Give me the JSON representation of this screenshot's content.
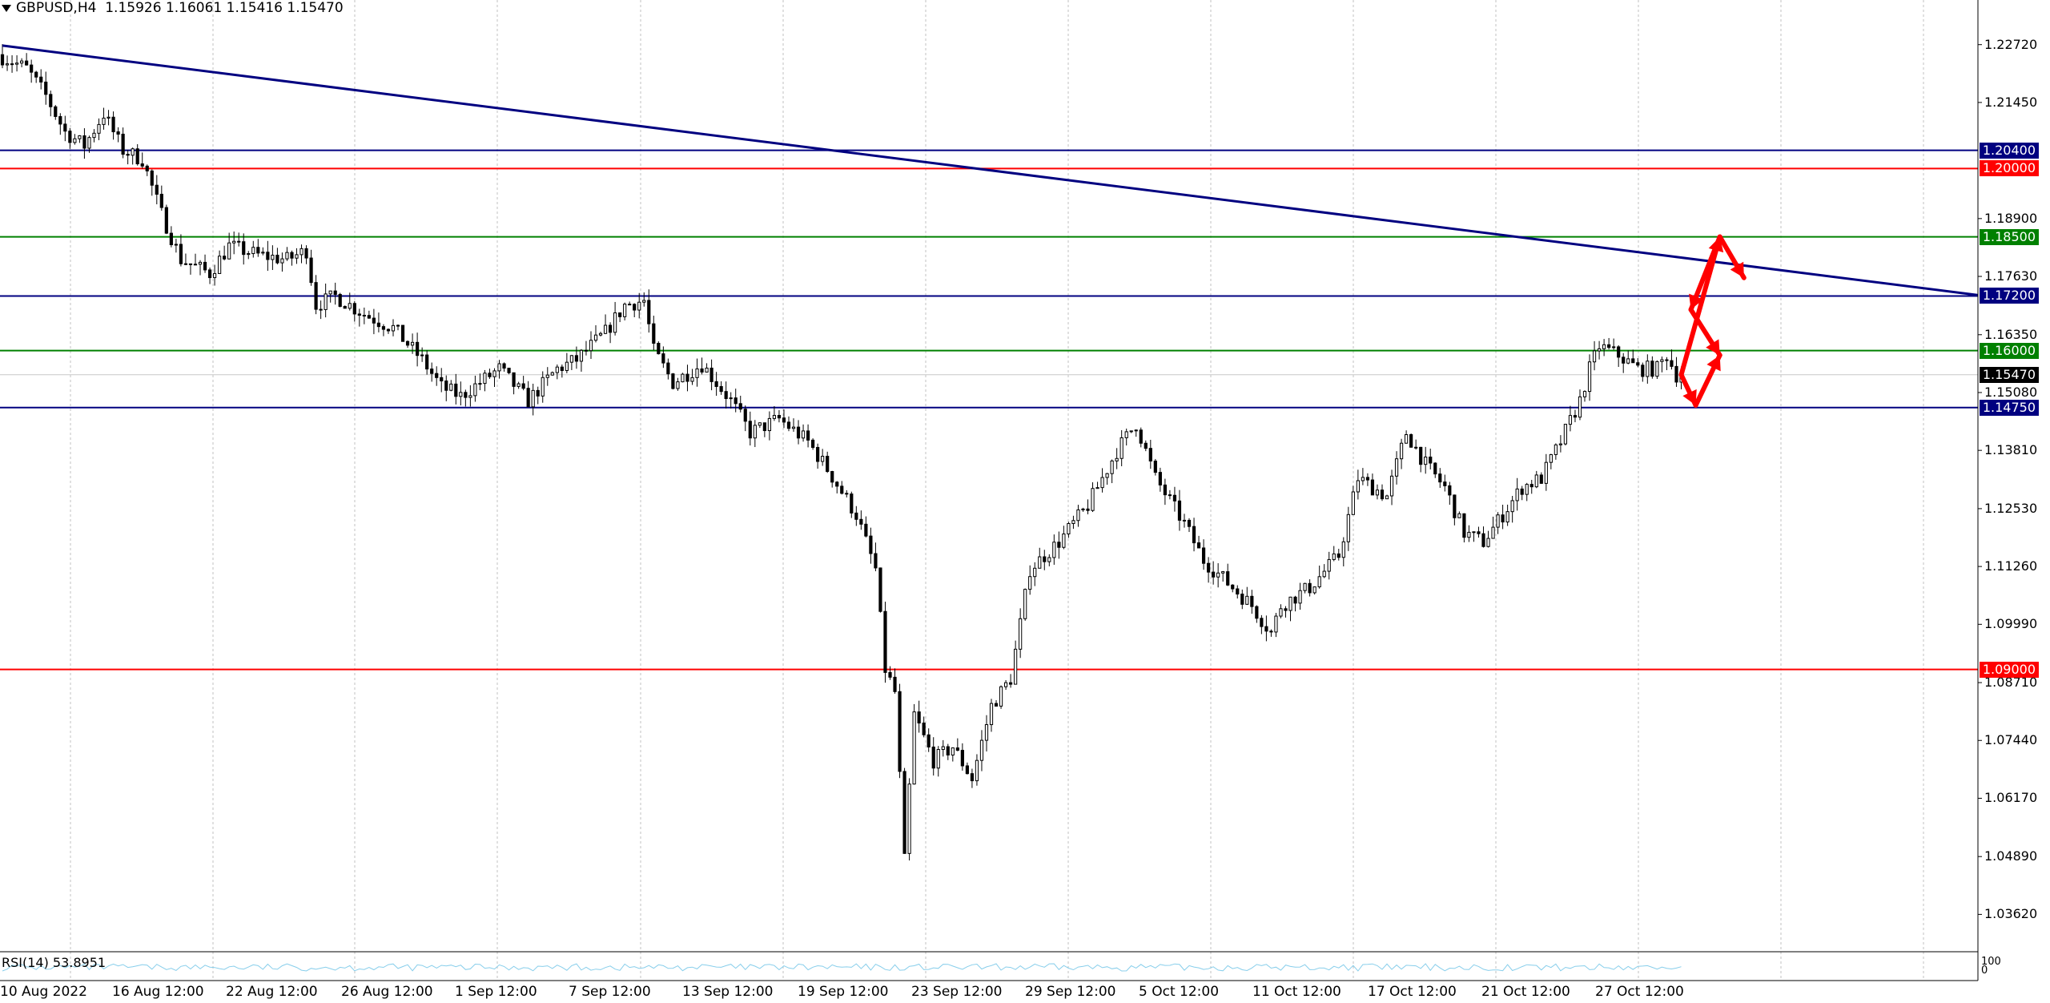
{
  "header": {
    "symbol": "GBPUSD,H4",
    "open": "1.15926",
    "high": "1.16061",
    "low": "1.15416",
    "close": "1.15470"
  },
  "indicator": {
    "label": "RSI(14) 53.8951",
    "scale_top": "100",
    "scale_bottom": "0"
  },
  "colors": {
    "navy": "#000080",
    "red": "#ff0000",
    "green": "#008000",
    "black": "#000000",
    "grid": "#c0c0c0",
    "rsi_line": "#87ceeb"
  },
  "price_axis": [
    "1.22720",
    "1.21450",
    "1.18900",
    "1.17630",
    "1.16350",
    "1.15080",
    "1.13810",
    "1.12530",
    "1.11260",
    "1.09990",
    "1.08710",
    "1.07440",
    "1.06170",
    "1.04890",
    "1.03620"
  ],
  "levels": [
    {
      "label": "1.20400",
      "value": 1.204,
      "color": "#000080"
    },
    {
      "label": "1.20000",
      "value": 1.2,
      "color": "#ff0000"
    },
    {
      "label": "1.18500",
      "value": 1.185,
      "color": "#008000"
    },
    {
      "label": "1.17200",
      "value": 1.172,
      "color": "#000080"
    },
    {
      "label": "1.16000",
      "value": 1.16,
      "color": "#008000"
    },
    {
      "label": "1.15470",
      "value": 1.1547,
      "color": "#000000"
    },
    {
      "label": "1.14750",
      "value": 1.1475,
      "color": "#000080"
    },
    {
      "label": "1.09000",
      "value": 1.09,
      "color": "#ff0000"
    }
  ],
  "dates": [
    "10 Aug 2022",
    "16 Aug 12:00",
    "22 Aug 12:00",
    "26 Aug 12:00",
    "1 Sep 12:00",
    "7 Sep 12:00",
    "13 Sep 12:00",
    "19 Sep 12:00",
    "23 Sep 12:00",
    "29 Sep 12:00",
    "5 Oct 12:00",
    "11 Oct 12:00",
    "17 Oct 12:00",
    "21 Oct 12:00",
    "27 Oct 12:00"
  ],
  "chart_data": {
    "type": "candlestick",
    "symbol": "GBPUSD",
    "timeframe": "H4",
    "ylim": [
      1.028,
      1.237
    ],
    "price_path": [
      [
        0,
        1.225
      ],
      [
        6,
        1.222
      ],
      [
        10,
        1.216
      ],
      [
        14,
        1.208
      ],
      [
        18,
        1.205
      ],
      [
        22,
        1.212
      ],
      [
        26,
        1.204
      ],
      [
        30,
        1.202
      ],
      [
        34,
        1.19
      ],
      [
        38,
        1.18
      ],
      [
        44,
        1.177
      ],
      [
        48,
        1.183
      ],
      [
        54,
        1.181
      ],
      [
        60,
        1.18
      ],
      [
        64,
        1.182
      ],
      [
        66,
        1.17
      ],
      [
        70,
        1.172
      ],
      [
        76,
        1.168
      ],
      [
        82,
        1.165
      ],
      [
        88,
        1.158
      ],
      [
        92,
        1.152
      ],
      [
        96,
        1.15
      ],
      [
        100,
        1.153
      ],
      [
        104,
        1.156
      ],
      [
        110,
        1.149
      ],
      [
        116,
        1.156
      ],
      [
        120,
        1.158
      ],
      [
        126,
        1.164
      ],
      [
        130,
        1.17
      ],
      [
        134,
        1.171
      ],
      [
        136,
        1.16
      ],
      [
        140,
        1.153
      ],
      [
        146,
        1.157
      ],
      [
        152,
        1.149
      ],
      [
        156,
        1.142
      ],
      [
        162,
        1.145
      ],
      [
        168,
        1.14
      ],
      [
        172,
        1.134
      ],
      [
        178,
        1.124
      ],
      [
        182,
        1.112
      ],
      [
        184,
        1.09
      ],
      [
        186,
        1.085
      ],
      [
        188,
        1.048
      ],
      [
        190,
        1.08
      ],
      [
        194,
        1.07
      ],
      [
        198,
        1.073
      ],
      [
        202,
        1.066
      ],
      [
        206,
        1.082
      ],
      [
        210,
        1.088
      ],
      [
        214,
        1.112
      ],
      [
        220,
        1.118
      ],
      [
        226,
        1.126
      ],
      [
        232,
        1.138
      ],
      [
        236,
        1.144
      ],
      [
        240,
        1.132
      ],
      [
        246,
        1.122
      ],
      [
        250,
        1.114
      ],
      [
        256,
        1.108
      ],
      [
        260,
        1.104
      ],
      [
        264,
        1.098
      ],
      [
        266,
        1.104
      ],
      [
        272,
        1.108
      ],
      [
        278,
        1.115
      ],
      [
        282,
        1.132
      ],
      [
        288,
        1.128
      ],
      [
        292,
        1.142
      ],
      [
        296,
        1.135
      ],
      [
        300,
        1.13
      ],
      [
        304,
        1.12
      ],
      [
        308,
        1.118
      ],
      [
        312,
        1.124
      ],
      [
        316,
        1.13
      ],
      [
        320,
        1.132
      ],
      [
        324,
        1.14
      ],
      [
        328,
        1.149
      ],
      [
        330,
        1.156
      ],
      [
        332,
        1.161
      ],
      [
        336,
        1.159
      ],
      [
        340,
        1.156
      ],
      [
        344,
        1.156
      ],
      [
        346,
        1.159
      ],
      [
        348,
        1.1547
      ]
    ],
    "levels": [
      1.204,
      1.2,
      1.185,
      1.172,
      1.16,
      1.1475,
      1.09
    ],
    "trendline": [
      [
        0,
        1.227
      ],
      [
        410,
        1.1722
      ]
    ],
    "forecast_arrows": [
      [
        [
          348,
          1.1547
        ],
        [
          356,
          1.185
        ]
      ],
      [
        [
          356,
          1.185
        ],
        [
          361,
          1.176
        ]
      ],
      [
        [
          356,
          1.185
        ],
        [
          350,
          1.169
        ]
      ],
      [
        [
          350,
          1.169
        ],
        [
          356,
          1.159
        ]
      ],
      [
        [
          348,
          1.1547
        ],
        [
          351,
          1.148
        ]
      ],
      [
        [
          351,
          1.148
        ],
        [
          356,
          1.159
        ]
      ]
    ]
  }
}
